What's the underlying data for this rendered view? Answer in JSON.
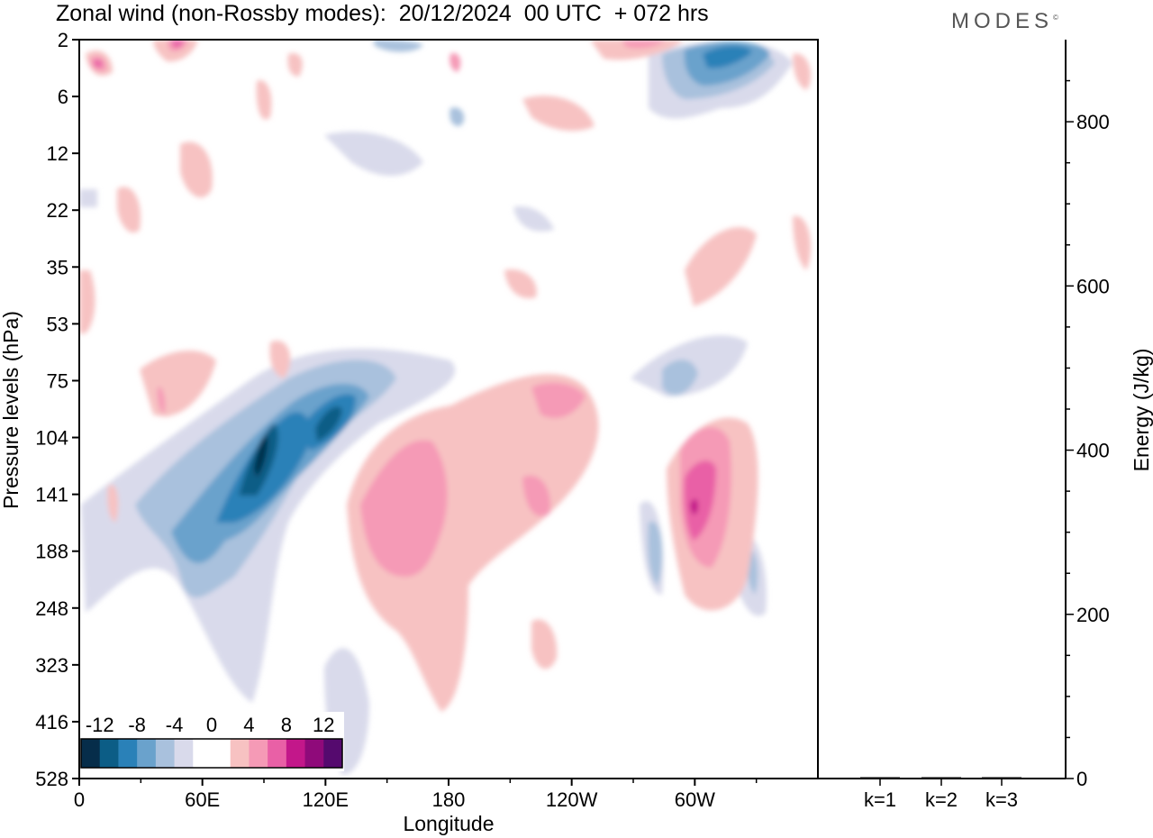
{
  "header": {
    "title": "Zonal wind (non-Rossby modes):  20/12/2024  00 UTC  + 072 hrs",
    "logo_text": "MODES",
    "logo_mark": "©"
  },
  "chart_data": [
    {
      "type": "heatmap",
      "title": "Zonal wind (non-Rossby modes):  20/12/2024  00 UTC  + 072 hrs",
      "xlabel": "Longitude",
      "ylabel": "Pressure levels (hPa)",
      "x_ticks": [
        "0",
        "60E",
        "120E",
        "180",
        "120W",
        "60W"
      ],
      "x_tick_degrees": [
        0,
        60,
        120,
        180,
        240,
        300
      ],
      "xlim": [
        0,
        360
      ],
      "y_ticks": [
        "2",
        "6",
        "12",
        "22",
        "35",
        "53",
        "75",
        "104",
        "141",
        "188",
        "248",
        "323",
        "416",
        "528"
      ],
      "y_scale": "pressure-levels (top = 2 hPa, bottom = 528 hPa)",
      "colorbar": {
        "labels": [
          "-12",
          "-8",
          "-4",
          "0",
          "4",
          "8",
          "12"
        ],
        "levels": [
          -14,
          -12,
          -10,
          -8,
          -6,
          -4,
          -2,
          0,
          2,
          4,
          6,
          8,
          10,
          12,
          14
        ],
        "colors": [
          "#062d4a",
          "#0c5d86",
          "#2a81b8",
          "#6aa2cc",
          "#a9c1dd",
          "#d9daeb",
          "#ffffff",
          "#ffffff",
          "#f7c2c2",
          "#f59ab6",
          "#e960a6",
          "#c3178a",
          "#8f0a7a",
          "#550a6e"
        ]
      },
      "features": [
        {
          "name": "negative jet band",
          "lon_range": [
            30,
            150
          ],
          "levels": [
            "75",
            "248"
          ],
          "min_value": -14
        },
        {
          "name": "positive region",
          "lon_range": [
            140,
            200
          ],
          "levels": [
            "104",
            "416"
          ],
          "max_value": 8
        },
        {
          "name": "positive region",
          "lon_range": [
            290,
            320
          ],
          "levels": [
            "104",
            "248"
          ],
          "max_value": 10
        },
        {
          "name": "negative region upper",
          "lon_range": [
            280,
            330
          ],
          "levels": [
            "2",
            "6"
          ],
          "min_value": -12
        }
      ]
    },
    {
      "type": "bar",
      "categories": [
        "k=1",
        "k=2",
        "k=3"
      ],
      "values": [
        1.5,
        1.0,
        0.5
      ],
      "ylabel": "Energy (J/kg)",
      "ylim": [
        0,
        900
      ],
      "y_ticks": [
        0,
        200,
        400,
        600,
        800
      ]
    }
  ]
}
